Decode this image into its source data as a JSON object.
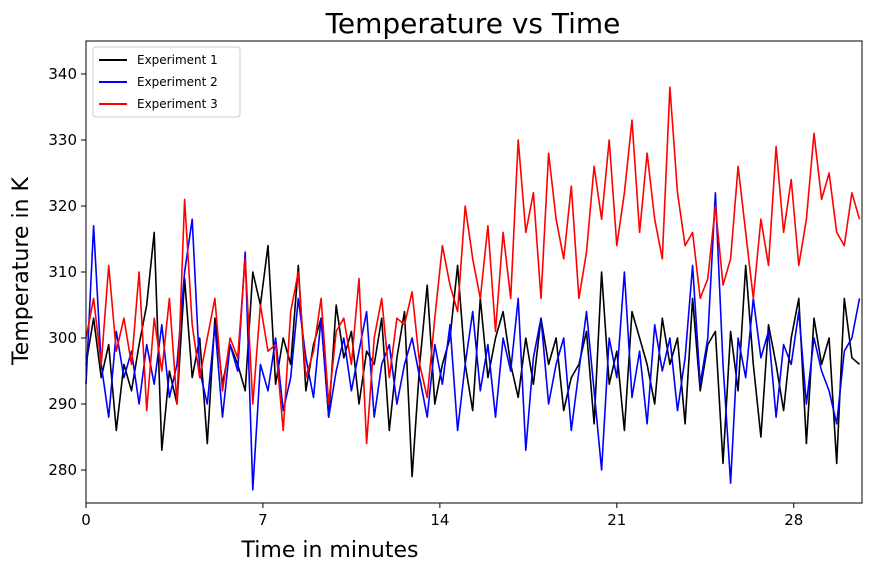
{
  "chart_data": {
    "type": "line",
    "title": "Temperature vs Time",
    "xlabel": "Time in minutes",
    "ylabel": "Temperature in K",
    "xlim": [
      0,
      30.7
    ],
    "ylim": [
      275,
      345
    ],
    "xticks": [
      0,
      7,
      14,
      21,
      28
    ],
    "yticks": [
      280,
      290,
      300,
      310,
      320,
      330,
      340
    ],
    "grid": false,
    "legend_position": "top-left",
    "series": [
      {
        "name": "Experiment 1",
        "color": "#000000",
        "x": [
          0,
          0.3,
          0.6,
          0.9,
          1.2,
          1.5,
          1.8,
          2.1,
          2.4,
          2.7,
          3.0,
          3.3,
          3.6,
          3.9,
          4.2,
          4.5,
          4.8,
          5.1,
          5.4,
          5.7,
          6.0,
          6.3,
          6.6,
          6.9,
          7.2,
          7.5,
          7.8,
          8.1,
          8.4,
          8.7,
          9.0,
          9.3,
          9.6,
          9.9,
          10.2,
          10.5,
          10.8,
          11.1,
          11.4,
          11.7,
          12.0,
          12.3,
          12.6,
          12.9,
          13.2,
          13.5,
          13.8,
          14.1,
          14.4,
          14.7,
          15.0,
          15.3,
          15.6,
          15.9,
          16.2,
          16.5,
          16.8,
          17.1,
          17.4,
          17.7,
          18.0,
          18.3,
          18.6,
          18.9,
          19.2,
          19.5,
          19.8,
          20.1,
          20.4,
          20.7,
          21.0,
          21.3,
          21.6,
          21.9,
          22.2,
          22.5,
          22.8,
          23.1,
          23.4,
          23.7,
          24.0,
          24.3,
          24.6,
          24.9,
          25.2,
          25.5,
          25.8,
          26.1,
          26.4,
          26.7,
          27.0,
          27.3,
          27.6,
          27.9,
          28.2,
          28.5,
          28.8,
          29.1,
          29.4,
          29.7,
          30.0,
          30.3,
          30.6
        ],
        "values": [
          296,
          303,
          294,
          299,
          286,
          296,
          292,
          299,
          305,
          316,
          283,
          295,
          290,
          309,
          294,
          300,
          284,
          303,
          293,
          299,
          296,
          292,
          310,
          305,
          314,
          293,
          300,
          296,
          311,
          292,
          299,
          303,
          288,
          305,
          297,
          301,
          290,
          298,
          296,
          303,
          286,
          297,
          304,
          279,
          296,
          308,
          290,
          296,
          300,
          311,
          296,
          289,
          306,
          294,
          300,
          304,
          296,
          291,
          300,
          293,
          303,
          296,
          300,
          289,
          294,
          296,
          301,
          287,
          310,
          293,
          298,
          286,
          304,
          300,
          296,
          290,
          303,
          296,
          300,
          287,
          306,
          292,
          299,
          301,
          281,
          301,
          292,
          311,
          296,
          285,
          302,
          296,
          289,
          300,
          306,
          284,
          303,
          296,
          300,
          281,
          306,
          297,
          296
        ]
      },
      {
        "name": "Experiment 2",
        "color": "#0000ff",
        "x": [
          0,
          0.3,
          0.6,
          0.9,
          1.2,
          1.5,
          1.8,
          2.1,
          2.4,
          2.7,
          3.0,
          3.3,
          3.6,
          3.9,
          4.2,
          4.5,
          4.8,
          5.1,
          5.4,
          5.7,
          6.0,
          6.3,
          6.6,
          6.9,
          7.2,
          7.5,
          7.8,
          8.1,
          8.4,
          8.7,
          9.0,
          9.3,
          9.6,
          9.9,
          10.2,
          10.5,
          10.8,
          11.1,
          11.4,
          11.7,
          12.0,
          12.3,
          12.6,
          12.9,
          13.2,
          13.5,
          13.8,
          14.1,
          14.4,
          14.7,
          15.0,
          15.3,
          15.6,
          15.9,
          16.2,
          16.5,
          16.8,
          17.1,
          17.4,
          17.7,
          18.0,
          18.3,
          18.6,
          18.9,
          19.2,
          19.5,
          19.8,
          20.1,
          20.4,
          20.7,
          21.0,
          21.3,
          21.6,
          21.9,
          22.2,
          22.5,
          22.8,
          23.1,
          23.4,
          23.7,
          24.0,
          24.3,
          24.6,
          24.9,
          25.2,
          25.5,
          25.8,
          26.1,
          26.4,
          26.7,
          27.0,
          27.3,
          27.6,
          27.9,
          28.2,
          28.5,
          28.8,
          29.1,
          29.4,
          29.7,
          30.0,
          30.3,
          30.6
        ],
        "values": [
          293,
          317,
          296,
          288,
          301,
          294,
          298,
          290,
          299,
          293,
          302,
          291,
          296,
          310,
          318,
          295,
          290,
          302,
          288,
          299,
          295,
          313,
          277,
          296,
          292,
          300,
          289,
          294,
          306,
          297,
          291,
          303,
          288,
          295,
          300,
          292,
          298,
          304,
          288,
          296,
          299,
          290,
          296,
          300,
          294,
          288,
          299,
          293,
          302,
          286,
          296,
          304,
          292,
          299,
          288,
          300,
          295,
          306,
          283,
          297,
          303,
          290,
          296,
          300,
          286,
          295,
          304,
          292,
          280,
          300,
          294,
          310,
          291,
          298,
          287,
          302,
          295,
          300,
          289,
          297,
          311,
          293,
          300,
          322,
          296,
          278,
          300,
          294,
          306,
          297,
          301,
          288,
          299,
          296,
          304,
          290,
          300,
          295,
          292,
          287,
          298,
          300,
          306
        ]
      },
      {
        "name": "Experiment 3",
        "color": "#ff0000",
        "x": [
          0,
          0.3,
          0.6,
          0.9,
          1.2,
          1.5,
          1.8,
          2.1,
          2.4,
          2.7,
          3.0,
          3.3,
          3.6,
          3.9,
          4.2,
          4.5,
          4.8,
          5.1,
          5.4,
          5.7,
          6.0,
          6.3,
          6.6,
          6.9,
          7.2,
          7.5,
          7.8,
          8.1,
          8.4,
          8.7,
          9.0,
          9.3,
          9.6,
          9.9,
          10.2,
          10.5,
          10.8,
          11.1,
          11.4,
          11.7,
          12.0,
          12.3,
          12.6,
          12.9,
          13.2,
          13.5,
          13.8,
          14.1,
          14.4,
          14.7,
          15.0,
          15.3,
          15.6,
          15.9,
          16.2,
          16.5,
          16.8,
          17.1,
          17.4,
          17.7,
          18.0,
          18.3,
          18.6,
          18.9,
          19.2,
          19.5,
          19.8,
          20.1,
          20.4,
          20.7,
          21.0,
          21.3,
          21.6,
          21.9,
          22.2,
          22.5,
          22.8,
          23.1,
          23.4,
          23.7,
          24.0,
          24.3,
          24.6,
          24.9,
          25.2,
          25.5,
          25.8,
          26.1,
          26.4,
          26.7,
          27.0,
          27.3,
          27.6,
          27.9,
          28.2,
          28.5,
          28.8,
          29.1,
          29.4,
          29.7,
          30.0,
          30.3,
          30.6
        ],
        "values": [
          300,
          306,
          296,
          311,
          298,
          303,
          296,
          310,
          289,
          303,
          295,
          306,
          290,
          321,
          302,
          294,
          300,
          306,
          292,
          300,
          297,
          312,
          290,
          305,
          298,
          299,
          286,
          304,
          310,
          294,
          298,
          306,
          290,
          301,
          303,
          296,
          309,
          284,
          300,
          306,
          294,
          303,
          302,
          307,
          296,
          291,
          303,
          314,
          308,
          304,
          320,
          312,
          306,
          317,
          301,
          316,
          306,
          330,
          316,
          322,
          306,
          328,
          318,
          312,
          323,
          306,
          313,
          326,
          318,
          330,
          314,
          322,
          333,
          316,
          328,
          318,
          312,
          338,
          322,
          314,
          316,
          306,
          309,
          320,
          308,
          312,
          326,
          316,
          306,
          318,
          311,
          329,
          316,
          324,
          311,
          318,
          331,
          321,
          325,
          316,
          314,
          322,
          318
        ]
      }
    ]
  }
}
